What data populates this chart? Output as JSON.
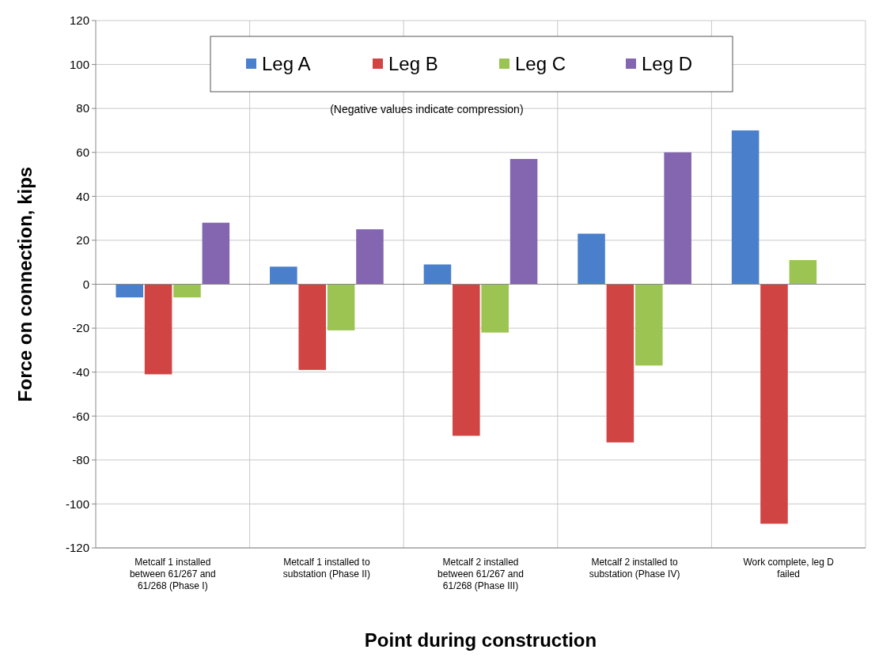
{
  "chart_data": {
    "type": "bar",
    "xlabel": "Point during construction",
    "ylabel": "Force on connection, kips",
    "categories": [
      "Metcalf 1 installed between 61/267 and 61/268 (Phase I)",
      "Metcalf 1 installed to substation (Phase II)",
      "Metcalf 2 installed between 61/267 and 61/268 (Phase III)",
      "Metcalf 2 installed to substation (Phase IV)",
      "Work complete, leg D failed"
    ],
    "series": [
      {
        "name": "Leg A",
        "color": "#4a7fcc",
        "values": [
          -6,
          8,
          9,
          23,
          70
        ]
      },
      {
        "name": "Leg B",
        "color": "#d04444",
        "values": [
          -41,
          -39,
          -69,
          -72,
          -109
        ]
      },
      {
        "name": "Leg C",
        "color": "#9cc452",
        "values": [
          -6,
          -21,
          -22,
          -37,
          11
        ]
      },
      {
        "name": "Leg D",
        "color": "#8466b0",
        "values": [
          28,
          25,
          57,
          60,
          0
        ]
      }
    ],
    "ylim": [
      -120,
      120
    ],
    "yticks": [
      -120,
      -100,
      -80,
      -60,
      -40,
      -20,
      0,
      20,
      40,
      60,
      80,
      100,
      120
    ],
    "grid": true,
    "legend": "top",
    "annotations": [
      "(Negative values indicate compression)"
    ]
  }
}
